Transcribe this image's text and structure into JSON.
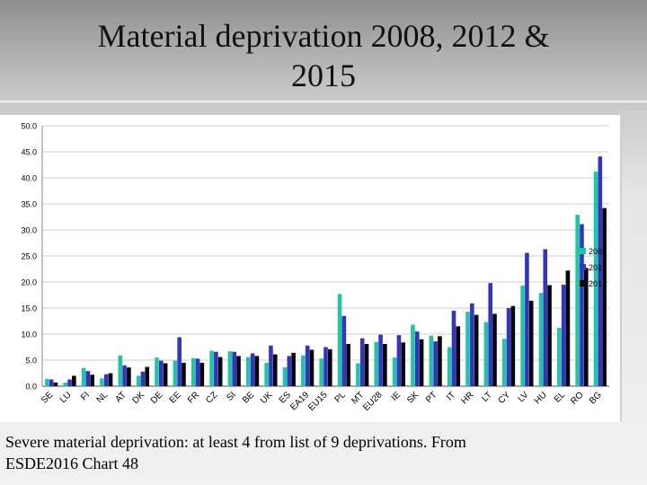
{
  "slide": {
    "title_line1": "Material deprivation 2008, 2012 &",
    "title_line2": "2015",
    "caption_line1": "Severe material deprivation:  at least 4 from list of 9 deprivations.  From",
    "caption_line2": "ESDE2016 Chart 48"
  },
  "colors": {
    "s2008": "#1fc6a6",
    "s2012": "#3434c4",
    "s2015": "#050505",
    "grid": "#cfcfcf"
  },
  "chart_data": {
    "type": "bar",
    "title": "Material deprivation 2008, 2012 & 2015",
    "xlabel": "",
    "ylabel": "",
    "ylim": [
      0,
      50
    ],
    "yticks": [
      "0.0",
      "5.0",
      "10.0",
      "15.0",
      "20.0",
      "25.0",
      "30.0",
      "35.0",
      "40.0",
      "45.0",
      "50.0"
    ],
    "legend_position": "right",
    "categories": [
      "SE",
      "LU",
      "FI",
      "NL",
      "AT",
      "DK",
      "DE",
      "EE",
      "FR",
      "CZ",
      "SI",
      "BE",
      "UK",
      "ES",
      "EA19",
      "EU15",
      "PL",
      "MT",
      "EU28",
      "IE",
      "SK",
      "PT",
      "IT",
      "HR",
      "LT",
      "CY",
      "LV",
      "HU",
      "EL",
      "RO",
      "BG"
    ],
    "series": [
      {
        "name": "2008",
        "values": [
          1.4,
          0.7,
          3.5,
          1.5,
          5.9,
          2.0,
          5.5,
          4.9,
          5.4,
          6.8,
          6.7,
          5.6,
          4.5,
          3.6,
          5.9,
          5.3,
          17.7,
          4.4,
          8.5,
          5.5,
          11.8,
          9.7,
          7.5,
          14.3,
          12.3,
          9.1,
          19.3,
          17.9,
          11.2,
          32.9,
          41.2
        ]
      },
      {
        "name": "2012",
        "values": [
          1.3,
          1.3,
          2.9,
          2.3,
          4.0,
          2.8,
          4.9,
          9.4,
          5.3,
          6.6,
          6.6,
          6.3,
          7.8,
          5.8,
          7.8,
          7.5,
          13.5,
          9.2,
          9.9,
          9.8,
          10.5,
          8.6,
          14.5,
          15.9,
          19.8,
          15.0,
          25.6,
          26.3,
          19.5,
          31.1,
          44.1
        ]
      },
      {
        "name": "2015",
        "values": [
          0.7,
          2.0,
          2.2,
          2.5,
          3.6,
          3.7,
          4.4,
          4.5,
          4.5,
          5.6,
          5.8,
          5.8,
          6.1,
          6.4,
          7.0,
          7.1,
          8.1,
          8.1,
          8.1,
          8.4,
          9.0,
          9.6,
          11.5,
          13.7,
          13.9,
          15.4,
          16.4,
          19.4,
          22.2,
          22.7,
          34.2
        ]
      }
    ]
  }
}
